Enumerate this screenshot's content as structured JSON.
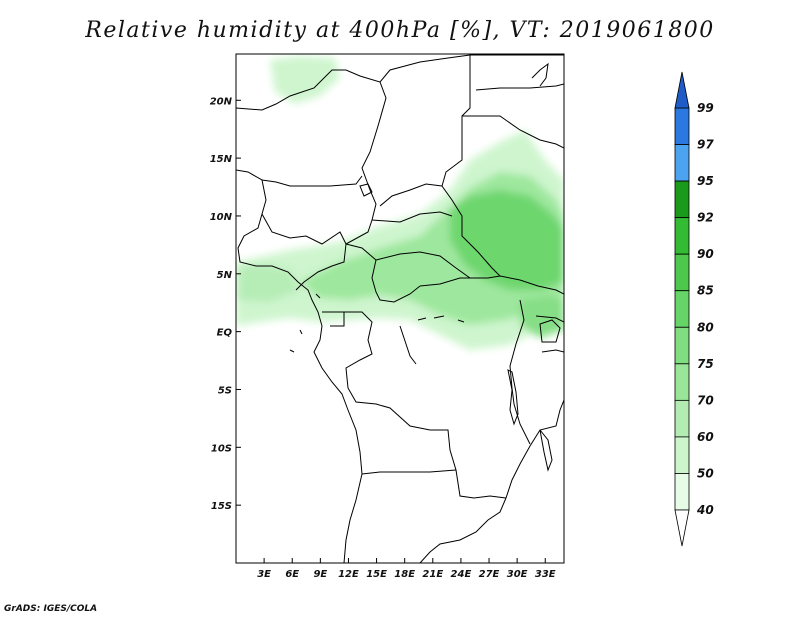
{
  "title": "Relative humidity at 400hPa [%], VT: 2019061800",
  "credit": "GrADS: IGES/COLA",
  "map": {
    "lon_ticks": [
      "3E",
      "6E",
      "9E",
      "12E",
      "15E",
      "18E",
      "21E",
      "24E",
      "27E",
      "30E",
      "33E"
    ],
    "lat_ticks": [
      "20N",
      "15N",
      "10N",
      "5N",
      "EQ",
      "5S",
      "10S",
      "15S"
    ],
    "lon_range": [
      0,
      35
    ],
    "lat_range": [
      -20,
      24
    ]
  },
  "colorbar": {
    "levels": [
      "40",
      "50",
      "60",
      "70",
      "75",
      "80",
      "85",
      "90",
      "92",
      "95",
      "97",
      "99"
    ],
    "colors": [
      "#ffffff",
      "#e6fce6",
      "#ccf5cc",
      "#b3ecb3",
      "#99e699",
      "#80dd80",
      "#66d466",
      "#4dc84d",
      "#33bb33",
      "#1a991a",
      "#4ca3f0",
      "#2a78e0",
      "#1f5cc8"
    ]
  }
}
